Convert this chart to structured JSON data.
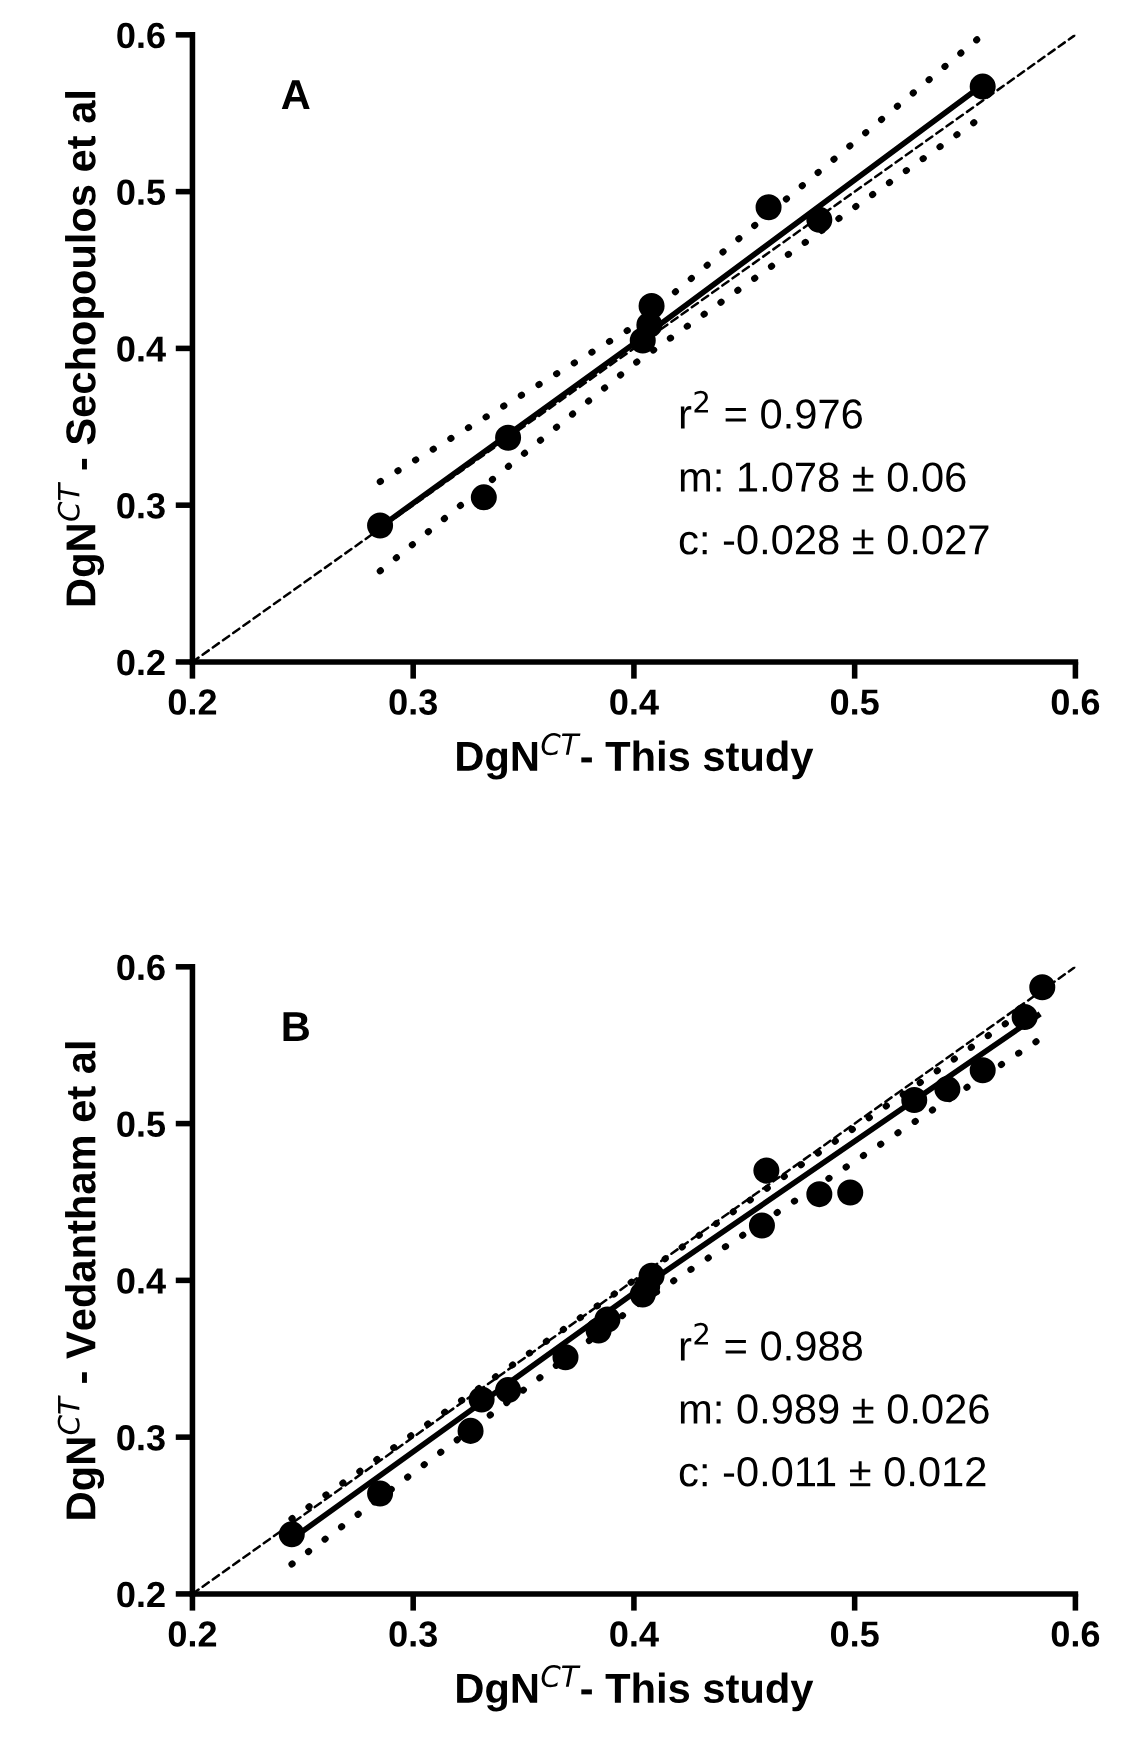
{
  "chart_data": [
    {
      "type": "scatter",
      "title": "A",
      "xlabel": "DgN$^{CT}$- This study",
      "ylabel": "DgN$^{CT}$ - Sechopoulos et al",
      "xlim": [
        0.2,
        0.6
      ],
      "ylim": [
        0.2,
        0.6
      ],
      "xticks": [
        0.2,
        0.3,
        0.4,
        0.5,
        0.6
      ],
      "yticks": [
        0.2,
        0.3,
        0.4,
        0.5,
        0.6
      ],
      "annotations": [
        "r$^{2}$ = 0.976",
        "m: 1.078 ± 0.06",
        "c: -0.028 ± 0.027"
      ],
      "series": [
        {
          "marker": "circle",
          "color": "#000000",
          "x": [
            0.285,
            0.332,
            0.343,
            0.404,
            0.407,
            0.408,
            0.461,
            0.484,
            0.558
          ],
          "values": [
            0.287,
            0.305,
            0.343,
            0.405,
            0.415,
            0.427,
            0.49,
            0.482,
            0.567
          ]
        },
        {
          "type": "line",
          "line_style": "solid",
          "color": "#000000",
          "x": [
            0.285,
            0.4,
            0.558
          ],
          "values": [
            0.286,
            0.403,
            0.568
          ]
        },
        {
          "type": "line",
          "line_style": "dotted",
          "color": "#000000",
          "x": [
            0.285,
            0.4,
            0.558
          ],
          "values": [
            0.315,
            0.414,
            0.6
          ]
        },
        {
          "type": "line",
          "line_style": "dotted",
          "color": "#000000",
          "x": [
            0.285,
            0.4,
            0.558
          ],
          "values": [
            0.258,
            0.39,
            0.548
          ]
        },
        {
          "type": "line",
          "line_style": "dashed",
          "color": "#000000",
          "x": [
            0.2,
            0.6
          ],
          "values": [
            0.2,
            0.6
          ]
        }
      ]
    },
    {
      "type": "scatter",
      "title": "B",
      "xlabel": "DgN$^{CT}$- This study",
      "ylabel": "DgN$^{CT}$ - Vedantham et al",
      "xlim": [
        0.2,
        0.6
      ],
      "ylim": [
        0.2,
        0.6
      ],
      "xticks": [
        0.2,
        0.3,
        0.4,
        0.5,
        0.6
      ],
      "yticks": [
        0.2,
        0.3,
        0.4,
        0.5,
        0.6
      ],
      "annotations": [
        "r$^{2}$ = 0.988",
        "m: 0.989 ± 0.026",
        "c: -0.011 ± 0.012"
      ],
      "series": [
        {
          "marker": "circle",
          "color": "#000000",
          "x": [
            0.245,
            0.285,
            0.326,
            0.331,
            0.343,
            0.369,
            0.384,
            0.388,
            0.404,
            0.406,
            0.408,
            0.46,
            0.458,
            0.484,
            0.498,
            0.527,
            0.542,
            0.558,
            0.577,
            0.585
          ],
          "values": [
            0.238,
            0.264,
            0.304,
            0.324,
            0.33,
            0.351,
            0.368,
            0.375,
            0.391,
            0.396,
            0.403,
            0.47,
            0.435,
            0.455,
            0.456,
            0.515,
            0.522,
            0.534,
            0.568,
            0.587
          ]
        },
        {
          "type": "line",
          "line_style": "solid",
          "color": "#000000",
          "x": [
            0.245,
            0.4,
            0.583
          ],
          "values": [
            0.235,
            0.392,
            0.569
          ]
        },
        {
          "type": "line",
          "line_style": "dotted",
          "color": "#000000",
          "x": [
            0.245,
            0.4,
            0.583
          ],
          "values": [
            0.248,
            0.4,
            0.578
          ]
        },
        {
          "type": "line",
          "line_style": "dotted",
          "color": "#000000",
          "x": [
            0.245,
            0.4,
            0.583
          ],
          "values": [
            0.219,
            0.383,
            0.553
          ]
        },
        {
          "type": "line",
          "line_style": "dashed",
          "color": "#000000",
          "x": [
            0.2,
            0.6
          ],
          "values": [
            0.2,
            0.6
          ]
        }
      ]
    }
  ]
}
